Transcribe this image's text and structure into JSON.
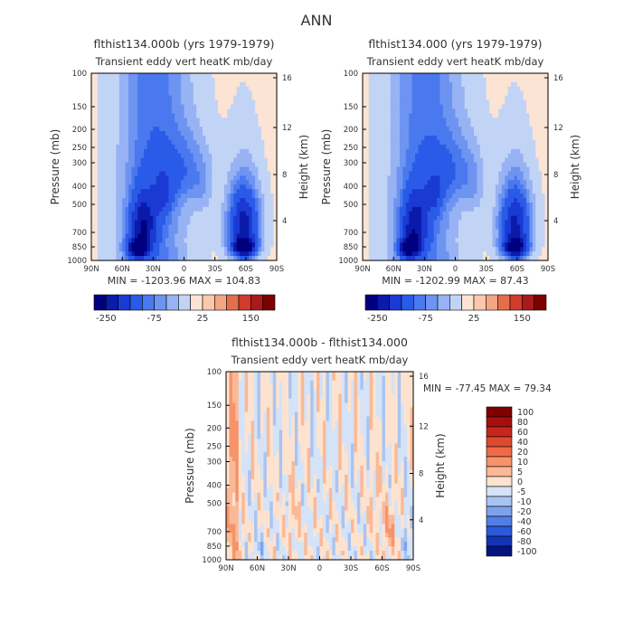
{
  "page_title": "ANN",
  "chart_data": [
    {
      "type": "heatmap",
      "id": "p1",
      "case_title": "flthist134.000b (yrs 1979-1979)",
      "subtitle": "Transient eddy vert heatK mb/day",
      "stats_text": "MIN = -1203.96   MAX = 104.83",
      "min": -1203.96,
      "max": 104.83,
      "xlabel": "",
      "ylabel": "Pressure (mb)",
      "y2label": "Height (km)",
      "x_ticks": [
        "90N",
        "60N",
        "30N",
        "0",
        "30S",
        "60S",
        "90S"
      ],
      "x_tick_values": [
        90,
        60,
        30,
        0,
        -30,
        -60,
        -90
      ],
      "y_ticks": [
        100,
        150,
        200,
        250,
        300,
        400,
        500,
        700,
        850,
        1000
      ],
      "y_tick_labels": [
        "100",
        "150",
        "200",
        "250",
        "300",
        "400",
        "500",
        "700",
        "850",
        "1000"
      ],
      "height_ticks": [
        4,
        8,
        12,
        16
      ],
      "ylim": [
        1000,
        100
      ],
      "colorbar_levels": [
        -300,
        -250,
        -200,
        -150,
        -100,
        -75,
        -50,
        -25,
        0,
        25,
        50,
        75,
        100,
        150,
        200
      ],
      "colorbar_labels": [
        "-250",
        "-75",
        "25",
        "150"
      ],
      "colorbar_colors": [
        "#00007f",
        "#0a1bab",
        "#1b3ad3",
        "#2a5be8",
        "#4a78ee",
        "#6e94f1",
        "#97b3f4",
        "#c2d4f6",
        "#fbe4d3",
        "#fbc8ac",
        "#f4a582",
        "#e56d4c",
        "#d03b2a",
        "#ab1a1a",
        "#7f0000"
      ]
    },
    {
      "type": "heatmap",
      "id": "p2",
      "case_title": "flthist134.000 (yrs 1979-1979)",
      "subtitle": "Transient eddy vert heatK mb/day",
      "stats_text": "MIN = -1202.99   MAX =   87.43",
      "min": -1202.99,
      "max": 87.43,
      "xlabel": "",
      "ylabel": "Pressure (mb)",
      "y2label": "Height (km)",
      "x_ticks": [
        "90N",
        "60N",
        "30N",
        "0",
        "30S",
        "60S",
        "90S"
      ],
      "x_tick_values": [
        90,
        60,
        30,
        0,
        -30,
        -60,
        -90
      ],
      "y_ticks": [
        100,
        150,
        200,
        250,
        300,
        400,
        500,
        700,
        850,
        1000
      ],
      "y_tick_labels": [
        "100",
        "150",
        "200",
        "250",
        "300",
        "400",
        "500",
        "700",
        "850",
        "1000"
      ],
      "height_ticks": [
        4,
        8,
        12,
        16
      ],
      "ylim": [
        1000,
        100
      ],
      "colorbar_levels": [
        -300,
        -250,
        -200,
        -150,
        -100,
        -75,
        -50,
        -25,
        0,
        25,
        50,
        75,
        100,
        150,
        200
      ],
      "colorbar_labels": [
        "-250",
        "-75",
        "25",
        "150"
      ],
      "colorbar_colors": [
        "#00007f",
        "#0a1bab",
        "#1b3ad3",
        "#2a5be8",
        "#4a78ee",
        "#6e94f1",
        "#97b3f4",
        "#c2d4f6",
        "#fbe4d3",
        "#fbc8ac",
        "#f4a582",
        "#e56d4c",
        "#d03b2a",
        "#ab1a1a",
        "#7f0000"
      ]
    },
    {
      "type": "heatmap",
      "id": "p3",
      "case_title": "flthist134.000b - flthist134.000",
      "subtitle": "Transient eddy vert heatK mb/day",
      "stats_text": "MIN = -77.45   MAX =  79.34",
      "min": -77.45,
      "max": 79.34,
      "xlabel": "",
      "ylabel": "Pressure (mb)",
      "y2label": "Height (km)",
      "x_ticks": [
        "90N",
        "60N",
        "30N",
        "0",
        "30S",
        "60S",
        "90S"
      ],
      "x_tick_values": [
        90,
        60,
        30,
        0,
        -30,
        -60,
        -90
      ],
      "y_ticks": [
        100,
        150,
        200,
        250,
        300,
        400,
        500,
        700,
        850,
        1000
      ],
      "y_tick_labels": [
        "100",
        "150",
        "200",
        "250",
        "300",
        "400",
        "500",
        "700",
        "850",
        "1000"
      ],
      "height_ticks": [
        4,
        8,
        12,
        16
      ],
      "ylim": [
        1000,
        100
      ],
      "colorbar_labels": [
        "100",
        "80",
        "60",
        "40",
        "20",
        "10",
        "5",
        "0",
        "-5",
        "-10",
        "-20",
        "-40",
        "-60",
        "-80",
        "-100"
      ],
      "colorbar_colors": [
        "#7f0000",
        "#a50f0f",
        "#c6271b",
        "#dd4a2e",
        "#ef6a47",
        "#f7936a",
        "#fbb996",
        "#fde3cf",
        "#d4e3f7",
        "#a9c4f2",
        "#7da2ed",
        "#517ee6",
        "#2c59d9",
        "#1434b4",
        "#03147f"
      ]
    }
  ]
}
